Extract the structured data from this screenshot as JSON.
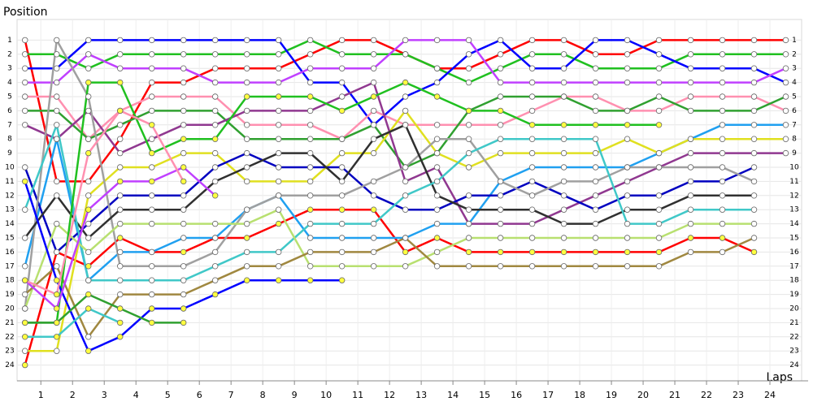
{
  "chart_data": {
    "type": "line",
    "y_axis_label": "Position",
    "x_axis_label": "Laps",
    "x": [
      0,
      1,
      2,
      3,
      4,
      5,
      6,
      7,
      8,
      9,
      10,
      11,
      12,
      13,
      14,
      15,
      16,
      17,
      18,
      19,
      20,
      21,
      22,
      23,
      24
    ],
    "xlim": [
      -0.25,
      24.5
    ],
    "xticks": [
      {
        "value": 0.5,
        "label": "1"
      },
      {
        "value": 1.5,
        "label": "2"
      },
      {
        "value": 2.5,
        "label": "3"
      },
      {
        "value": 3.5,
        "label": "4"
      },
      {
        "value": 4.5,
        "label": "5"
      },
      {
        "value": 5.5,
        "label": "6"
      },
      {
        "value": 6.5,
        "label": "7"
      },
      {
        "value": 7.5,
        "label": "8"
      },
      {
        "value": 8.5,
        "label": "9"
      },
      {
        "value": 9.5,
        "label": "10"
      },
      {
        "value": 10.5,
        "label": "11"
      },
      {
        "value": 11.5,
        "label": "12"
      },
      {
        "value": 12.5,
        "label": "13"
      },
      {
        "value": 13.5,
        "label": "14"
      },
      {
        "value": 14.5,
        "label": "15"
      },
      {
        "value": 15.5,
        "label": "16"
      },
      {
        "value": 16.5,
        "label": "17"
      },
      {
        "value": 17.5,
        "label": "18"
      },
      {
        "value": 18.5,
        "label": "19"
      },
      {
        "value": 19.5,
        "label": "20"
      },
      {
        "value": 20.5,
        "label": "21"
      },
      {
        "value": 21.5,
        "label": "22"
      },
      {
        "value": 22.5,
        "label": "23"
      },
      {
        "value": 23.5,
        "label": "24"
      }
    ],
    "ylim": [
      0,
      25
    ],
    "y_inverted": true,
    "yticks": [
      1,
      2,
      3,
      4,
      5,
      6,
      7,
      8,
      9,
      10,
      11,
      12,
      13,
      14,
      15,
      16,
      17,
      18,
      19,
      20,
      21,
      22,
      23,
      24
    ],
    "grid": true,
    "series": [
      {
        "color": "#ff0000",
        "marker": "#ffffff",
        "values": [
          1,
          11,
          11,
          8,
          4,
          4,
          3,
          3,
          3,
          2,
          1,
          1,
          2,
          3,
          3,
          2,
          1,
          1,
          2,
          2,
          1,
          1,
          1,
          1,
          1
        ]
      },
      {
        "color": "#ff0000",
        "marker": "#ffff40",
        "values": [
          24,
          16,
          17,
          15,
          16,
          16,
          15,
          15,
          14,
          13,
          13,
          13,
          16,
          15,
          16,
          16,
          16,
          16,
          16,
          16,
          16,
          15,
          15,
          16,
          null
        ]
      },
      {
        "color": "#20c020",
        "marker": "#ffffff",
        "values": [
          2,
          2,
          3,
          2,
          2,
          2,
          2,
          2,
          2,
          1,
          2,
          2,
          2,
          3,
          4,
          3,
          2,
          2,
          3,
          3,
          3,
          2,
          2,
          2,
          2
        ]
      },
      {
        "color": "#0000ff",
        "marker": "#ffffff",
        "values": [
          3,
          3,
          1,
          1,
          1,
          1,
          1,
          1,
          1,
          4,
          4,
          7,
          5,
          4,
          2,
          1,
          3,
          3,
          1,
          1,
          2,
          3,
          3,
          3,
          4
        ]
      },
      {
        "color": "#c040ff",
        "marker": "#ffffff",
        "values": [
          4,
          4,
          2,
          3,
          3,
          3,
          4,
          4,
          4,
          3,
          3,
          3,
          1,
          1,
          1,
          4,
          4,
          4,
          4,
          4,
          4,
          4,
          4,
          4,
          3
        ]
      },
      {
        "color": "#ff90b0",
        "marker": "#ffffff",
        "values": [
          5,
          5,
          8,
          6,
          5,
          5,
          5,
          7,
          7,
          7,
          8,
          6,
          7,
          7,
          7,
          7,
          6,
          5,
          5,
          6,
          6,
          5,
          5,
          5,
          6
        ]
      },
      {
        "color": "#30a030",
        "marker": "#ffffff",
        "values": [
          6,
          6,
          8,
          7,
          6,
          6,
          6,
          8,
          8,
          8,
          8,
          7,
          10,
          9,
          6,
          5,
          5,
          5,
          6,
          6,
          5,
          6,
          6,
          6,
          5
        ]
      },
      {
        "color": "#20a0f0",
        "marker": "#ffffff",
        "values": [
          17,
          8,
          18,
          16,
          16,
          15,
          15,
          13,
          12,
          15,
          15,
          15,
          15,
          14,
          14,
          11,
          10,
          10,
          10,
          10,
          9,
          8,
          7,
          7,
          7
        ]
      },
      {
        "color": "#e0e020",
        "marker": "#ffffff",
        "values": [
          23,
          23,
          12,
          10,
          10,
          9,
          9,
          11,
          11,
          11,
          9,
          9,
          6,
          9,
          10,
          9,
          9,
          9,
          9,
          8,
          9,
          8,
          8,
          8,
          8
        ]
      },
      {
        "color": "#903890",
        "marker": "#ffffff",
        "values": [
          7,
          8,
          6,
          9,
          8,
          7,
          7,
          6,
          6,
          6,
          5,
          4,
          11,
          10,
          14,
          14,
          14,
          13,
          12,
          11,
          10,
          9,
          9,
          9,
          9
        ]
      },
      {
        "color": "#0000c0",
        "marker": "#ffffff",
        "values": [
          10,
          16,
          14,
          12,
          12,
          12,
          10,
          9,
          10,
          10,
          10,
          12,
          13,
          13,
          12,
          12,
          11,
          12,
          13,
          12,
          12,
          11,
          11,
          10,
          null
        ]
      },
      {
        "color": "#a0a0a0",
        "marker": "#ffffff",
        "values": [
          20,
          1,
          5,
          17,
          17,
          17,
          16,
          13,
          12,
          12,
          12,
          11,
          10,
          8,
          8,
          11,
          12,
          11,
          11,
          10,
          10,
          10,
          10,
          11,
          null
        ]
      },
      {
        "color": "#303030",
        "marker": "#ffffff",
        "values": [
          15,
          12,
          15,
          13,
          13,
          13,
          11,
          10,
          9,
          9,
          11,
          8,
          7,
          12,
          13,
          13,
          13,
          14,
          14,
          13,
          13,
          12,
          12,
          12,
          null
        ]
      },
      {
        "color": "#40c8c8",
        "marker": "#ffffff",
        "values": [
          13,
          7,
          18,
          18,
          18,
          18,
          17,
          16,
          16,
          14,
          14,
          14,
          12,
          11,
          9,
          8,
          8,
          8,
          8,
          14,
          14,
          13,
          13,
          13,
          null
        ]
      },
      {
        "color": "#b8e070",
        "marker": "#ffffff",
        "values": [
          20,
          14,
          16,
          14,
          14,
          14,
          14,
          14,
          13,
          17,
          17,
          17,
          17,
          16,
          15,
          15,
          15,
          15,
          15,
          15,
          15,
          14,
          14,
          14,
          null
        ]
      },
      {
        "color": "#a08840",
        "marker": "#ffffff",
        "values": [
          19,
          17,
          22,
          19,
          19,
          19,
          18,
          17,
          17,
          16,
          16,
          16,
          15,
          17,
          17,
          17,
          17,
          17,
          17,
          17,
          17,
          16,
          16,
          15,
          null
        ]
      },
      {
        "color": "#20c020",
        "marker": "#ffff40",
        "values": [
          21,
          21,
          4,
          4,
          9,
          8,
          8,
          5,
          5,
          5,
          6,
          5,
          4,
          5,
          6,
          6,
          7,
          7,
          7,
          7,
          7,
          null,
          null,
          null,
          null
        ]
      },
      {
        "color": "#0000ff",
        "marker": "#ffff40",
        "values": [
          11,
          18,
          23,
          22,
          20,
          20,
          19,
          18,
          18,
          18,
          18,
          null,
          null,
          null,
          null,
          null,
          null,
          null,
          null,
          null,
          null,
          null,
          null,
          null,
          null
        ]
      },
      {
        "color": "#c040ff",
        "marker": "#ffff40",
        "values": [
          18,
          20,
          13,
          11,
          11,
          10,
          12,
          null,
          null,
          null,
          null,
          null,
          null,
          null,
          null,
          null,
          null,
          null,
          null,
          null,
          null,
          null,
          null,
          null,
          null
        ]
      },
      {
        "color": "#ff90b0",
        "marker": "#ffff40",
        "values": [
          18,
          19,
          9,
          6,
          7,
          11,
          null,
          null,
          null,
          null,
          null,
          null,
          null,
          null,
          null,
          null,
          null,
          null,
          null,
          null,
          null,
          null,
          null,
          null,
          null
        ]
      },
      {
        "color": "#30a030",
        "marker": "#ffff40",
        "values": [
          21,
          21,
          19,
          20,
          21,
          21,
          null,
          null,
          null,
          null,
          null,
          null,
          null,
          null,
          null,
          null,
          null,
          null,
          null,
          null,
          null,
          null,
          null,
          null,
          null
        ]
      },
      {
        "color": "#40c8c8",
        "marker": "#ffff40",
        "values": [
          22,
          22,
          20,
          21,
          null,
          null,
          null,
          null,
          null,
          null,
          null,
          null,
          null,
          null,
          null,
          null,
          null,
          null,
          null,
          null,
          null,
          null,
          null,
          null,
          null
        ]
      }
    ]
  }
}
